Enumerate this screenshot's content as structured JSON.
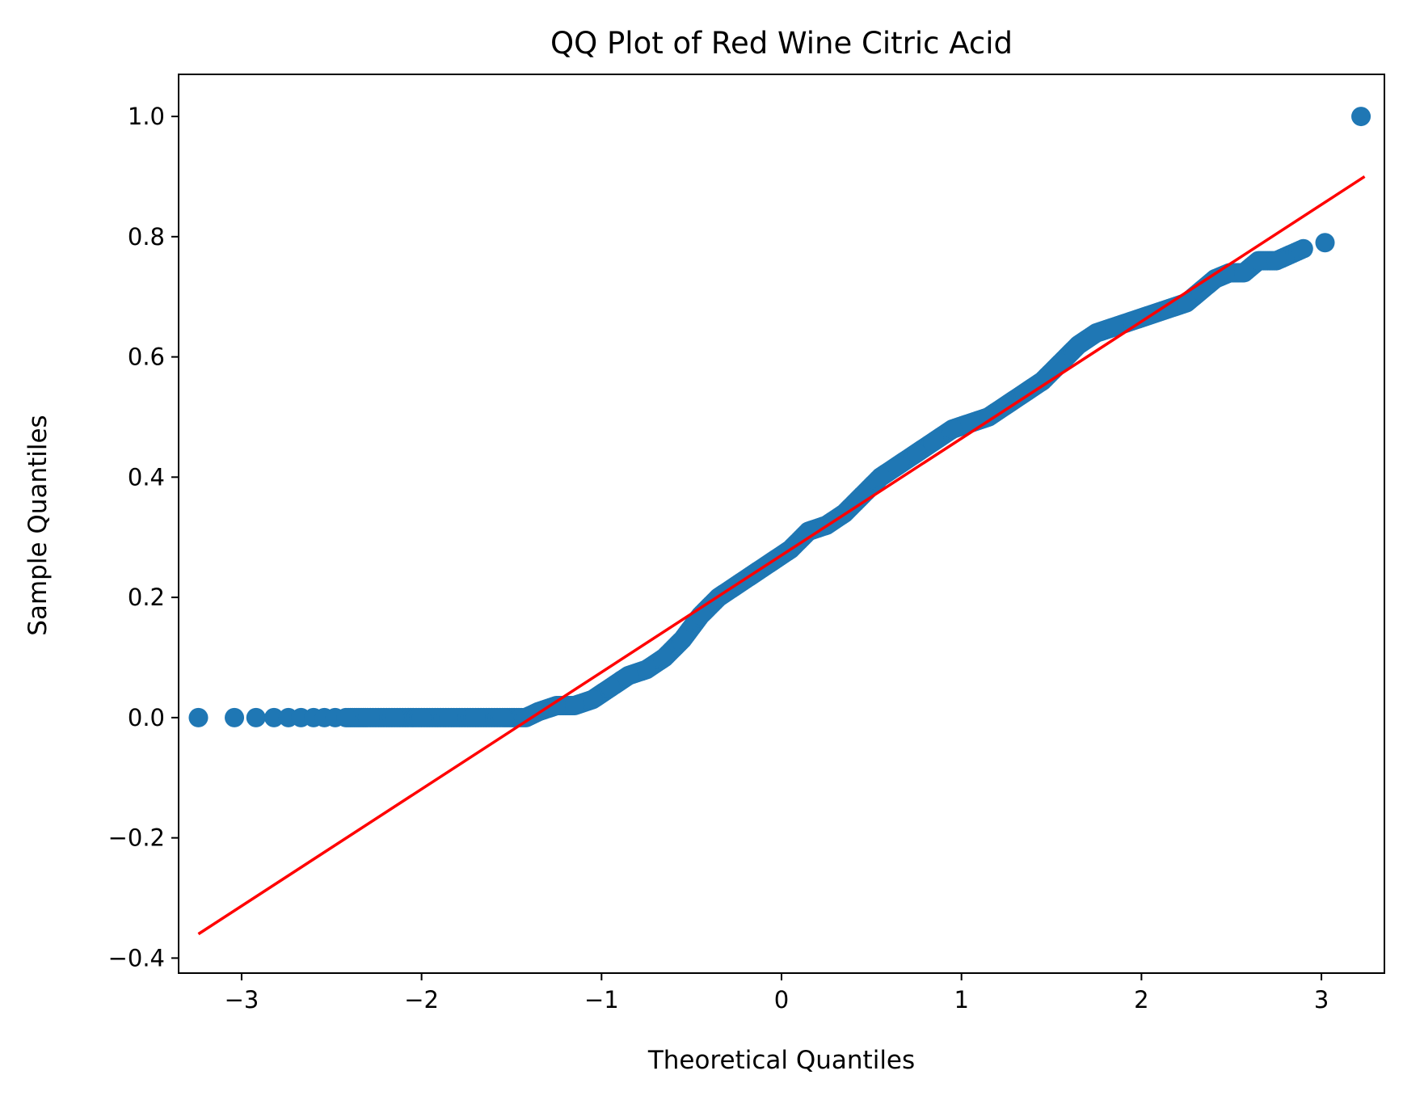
{
  "chart_data": {
    "type": "scatter",
    "title": "QQ Plot of Red Wine Citric Acid",
    "xlabel": "Theoretical Quantiles",
    "ylabel": "Sample Quantiles",
    "xlim": [
      -3.35,
      3.35
    ],
    "ylim": [
      -0.425,
      1.07
    ],
    "xticks": [
      {
        "value": -3,
        "label": "−3"
      },
      {
        "value": -2,
        "label": "−2"
      },
      {
        "value": -1,
        "label": "−1"
      },
      {
        "value": 0,
        "label": "0"
      },
      {
        "value": 1,
        "label": "1"
      },
      {
        "value": 2,
        "label": "2"
      },
      {
        "value": 3,
        "label": "3"
      }
    ],
    "yticks": [
      {
        "value": -0.4,
        "label": "−0.4"
      },
      {
        "value": -0.2,
        "label": "−0.2"
      },
      {
        "value": 0.0,
        "label": "0.0"
      },
      {
        "value": 0.2,
        "label": "0.2"
      },
      {
        "value": 0.4,
        "label": "0.4"
      },
      {
        "value": 0.6,
        "label": "0.6"
      },
      {
        "value": 0.8,
        "label": "0.8"
      },
      {
        "value": 1.0,
        "label": "1.0"
      }
    ],
    "grid": false,
    "colors": {
      "points": "#1f77b4",
      "reference_line": "#ff0000"
    },
    "series": [
      {
        "kind": "points",
        "points": [
          [
            -3.24,
            0.0
          ],
          [
            -3.04,
            0.0
          ],
          [
            -2.92,
            0.0
          ],
          [
            -2.82,
            0.0
          ],
          [
            -2.74,
            0.0
          ],
          [
            -2.67,
            0.0
          ],
          [
            -2.6,
            0.0
          ],
          [
            -2.54,
            0.0
          ],
          [
            -2.48,
            0.0
          ],
          [
            -2.42,
            0.0
          ],
          [
            -2.3,
            0.0
          ],
          [
            -2.15,
            0.0
          ],
          [
            -2.0,
            0.0
          ],
          [
            -1.85,
            0.0
          ],
          [
            -1.7,
            0.0
          ],
          [
            -1.55,
            0.0
          ],
          [
            -1.42,
            0.0
          ],
          [
            -1.35,
            0.01
          ],
          [
            -1.25,
            0.02
          ],
          [
            -1.15,
            0.02
          ],
          [
            -1.05,
            0.03
          ],
          [
            -0.95,
            0.05
          ],
          [
            -0.85,
            0.07
          ],
          [
            -0.75,
            0.08
          ],
          [
            -0.65,
            0.1
          ],
          [
            -0.55,
            0.13
          ],
          [
            -0.45,
            0.17
          ],
          [
            -0.35,
            0.2
          ],
          [
            -0.25,
            0.22
          ],
          [
            -0.15,
            0.24
          ],
          [
            -0.05,
            0.26
          ],
          [
            0.05,
            0.28
          ],
          [
            0.15,
            0.31
          ],
          [
            0.25,
            0.32
          ],
          [
            0.35,
            0.34
          ],
          [
            0.45,
            0.37
          ],
          [
            0.55,
            0.4
          ],
          [
            0.65,
            0.42
          ],
          [
            0.75,
            0.44
          ],
          [
            0.85,
            0.46
          ],
          [
            0.95,
            0.48
          ],
          [
            1.05,
            0.49
          ],
          [
            1.15,
            0.5
          ],
          [
            1.25,
            0.52
          ],
          [
            1.35,
            0.54
          ],
          [
            1.45,
            0.56
          ],
          [
            1.55,
            0.59
          ],
          [
            1.65,
            0.62
          ],
          [
            1.75,
            0.64
          ],
          [
            1.85,
            0.65
          ],
          [
            1.95,
            0.66
          ],
          [
            2.05,
            0.67
          ],
          [
            2.15,
            0.68
          ],
          [
            2.25,
            0.69
          ],
          [
            2.33,
            0.71
          ],
          [
            2.41,
            0.73
          ],
          [
            2.49,
            0.74
          ],
          [
            2.57,
            0.74
          ],
          [
            2.65,
            0.76
          ],
          [
            2.75,
            0.76
          ],
          [
            2.9,
            0.78
          ],
          [
            3.02,
            0.79
          ],
          [
            3.22,
            1.0
          ]
        ]
      },
      {
        "kind": "reference-line",
        "points": [
          [
            -3.24,
            -0.36
          ],
          [
            3.24,
            0.9
          ]
        ]
      }
    ]
  }
}
